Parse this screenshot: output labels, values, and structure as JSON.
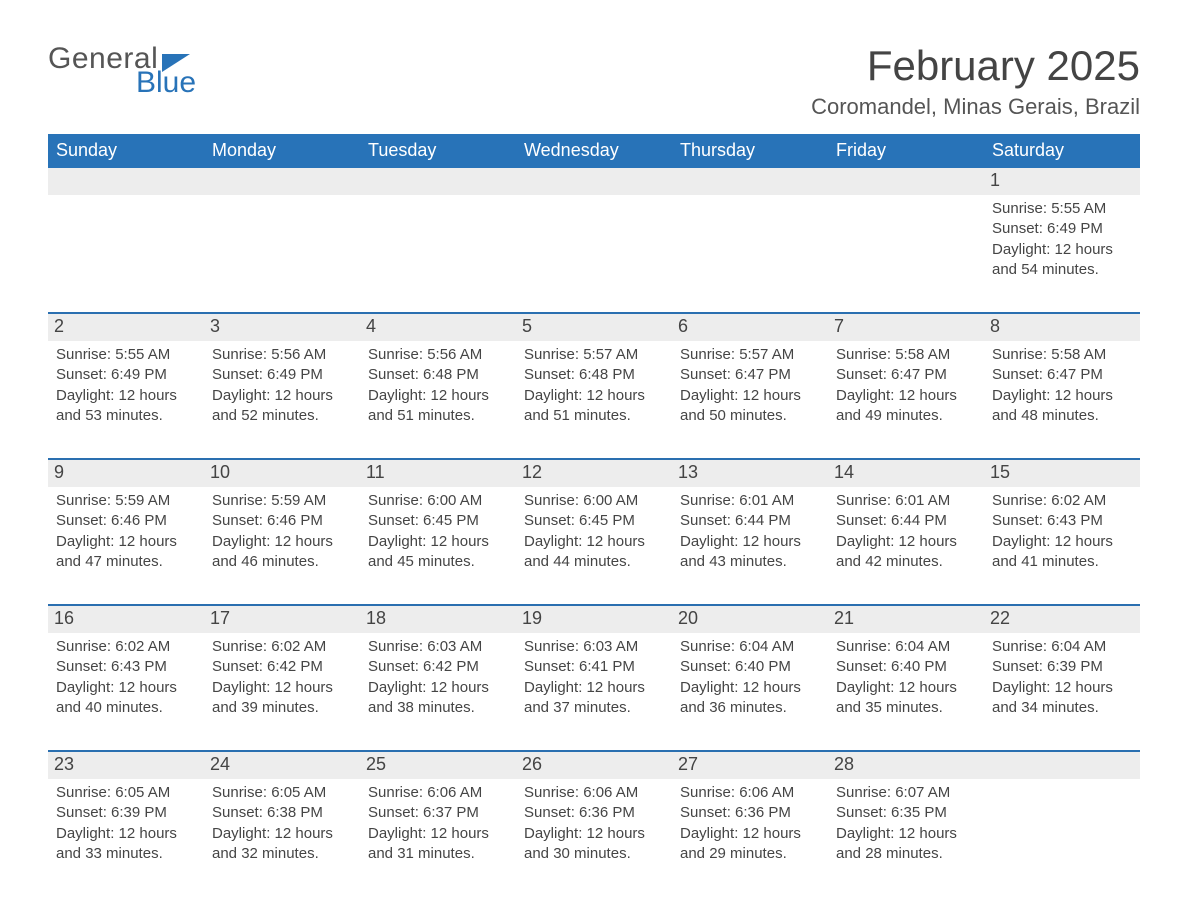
{
  "logo": {
    "word1": "General",
    "word2": "Blue"
  },
  "title": "February 2025",
  "location": "Coromandel, Minas Gerais, Brazil",
  "colors": {
    "header_blue": "#2873b8",
    "row_grey": "#ededed",
    "rule_blue": "#2a6fb0",
    "text_dark": "#333333",
    "text_grey": "#454545",
    "background": "#ffffff"
  },
  "typography": {
    "month_title_pt": 42,
    "location_pt": 22,
    "dow_pt": 18,
    "daynum_pt": 18,
    "body_pt": 15
  },
  "days_of_week": [
    "Sunday",
    "Monday",
    "Tuesday",
    "Wednesday",
    "Thursday",
    "Friday",
    "Saturday"
  ],
  "labels": {
    "sunrise": "Sunrise: ",
    "sunset": "Sunset: ",
    "daylight": "Daylight: "
  },
  "weeks": [
    [
      null,
      null,
      null,
      null,
      null,
      null,
      {
        "n": "1",
        "sunrise": "5:55 AM",
        "sunset": "6:49 PM",
        "daylight": "12 hours and 54 minutes."
      }
    ],
    [
      {
        "n": "2",
        "sunrise": "5:55 AM",
        "sunset": "6:49 PM",
        "daylight": "12 hours and 53 minutes."
      },
      {
        "n": "3",
        "sunrise": "5:56 AM",
        "sunset": "6:49 PM",
        "daylight": "12 hours and 52 minutes."
      },
      {
        "n": "4",
        "sunrise": "5:56 AM",
        "sunset": "6:48 PM",
        "daylight": "12 hours and 51 minutes."
      },
      {
        "n": "5",
        "sunrise": "5:57 AM",
        "sunset": "6:48 PM",
        "daylight": "12 hours and 51 minutes."
      },
      {
        "n": "6",
        "sunrise": "5:57 AM",
        "sunset": "6:47 PM",
        "daylight": "12 hours and 50 minutes."
      },
      {
        "n": "7",
        "sunrise": "5:58 AM",
        "sunset": "6:47 PM",
        "daylight": "12 hours and 49 minutes."
      },
      {
        "n": "8",
        "sunrise": "5:58 AM",
        "sunset": "6:47 PM",
        "daylight": "12 hours and 48 minutes."
      }
    ],
    [
      {
        "n": "9",
        "sunrise": "5:59 AM",
        "sunset": "6:46 PM",
        "daylight": "12 hours and 47 minutes."
      },
      {
        "n": "10",
        "sunrise": "5:59 AM",
        "sunset": "6:46 PM",
        "daylight": "12 hours and 46 minutes."
      },
      {
        "n": "11",
        "sunrise": "6:00 AM",
        "sunset": "6:45 PM",
        "daylight": "12 hours and 45 minutes."
      },
      {
        "n": "12",
        "sunrise": "6:00 AM",
        "sunset": "6:45 PM",
        "daylight": "12 hours and 44 minutes."
      },
      {
        "n": "13",
        "sunrise": "6:01 AM",
        "sunset": "6:44 PM",
        "daylight": "12 hours and 43 minutes."
      },
      {
        "n": "14",
        "sunrise": "6:01 AM",
        "sunset": "6:44 PM",
        "daylight": "12 hours and 42 minutes."
      },
      {
        "n": "15",
        "sunrise": "6:02 AM",
        "sunset": "6:43 PM",
        "daylight": "12 hours and 41 minutes."
      }
    ],
    [
      {
        "n": "16",
        "sunrise": "6:02 AM",
        "sunset": "6:43 PM",
        "daylight": "12 hours and 40 minutes."
      },
      {
        "n": "17",
        "sunrise": "6:02 AM",
        "sunset": "6:42 PM",
        "daylight": "12 hours and 39 minutes."
      },
      {
        "n": "18",
        "sunrise": "6:03 AM",
        "sunset": "6:42 PM",
        "daylight": "12 hours and 38 minutes."
      },
      {
        "n": "19",
        "sunrise": "6:03 AM",
        "sunset": "6:41 PM",
        "daylight": "12 hours and 37 minutes."
      },
      {
        "n": "20",
        "sunrise": "6:04 AM",
        "sunset": "6:40 PM",
        "daylight": "12 hours and 36 minutes."
      },
      {
        "n": "21",
        "sunrise": "6:04 AM",
        "sunset": "6:40 PM",
        "daylight": "12 hours and 35 minutes."
      },
      {
        "n": "22",
        "sunrise": "6:04 AM",
        "sunset": "6:39 PM",
        "daylight": "12 hours and 34 minutes."
      }
    ],
    [
      {
        "n": "23",
        "sunrise": "6:05 AM",
        "sunset": "6:39 PM",
        "daylight": "12 hours and 33 minutes."
      },
      {
        "n": "24",
        "sunrise": "6:05 AM",
        "sunset": "6:38 PM",
        "daylight": "12 hours and 32 minutes."
      },
      {
        "n": "25",
        "sunrise": "6:06 AM",
        "sunset": "6:37 PM",
        "daylight": "12 hours and 31 minutes."
      },
      {
        "n": "26",
        "sunrise": "6:06 AM",
        "sunset": "6:36 PM",
        "daylight": "12 hours and 30 minutes."
      },
      {
        "n": "27",
        "sunrise": "6:06 AM",
        "sunset": "6:36 PM",
        "daylight": "12 hours and 29 minutes."
      },
      {
        "n": "28",
        "sunrise": "6:07 AM",
        "sunset": "6:35 PM",
        "daylight": "12 hours and 28 minutes."
      },
      null
    ]
  ]
}
